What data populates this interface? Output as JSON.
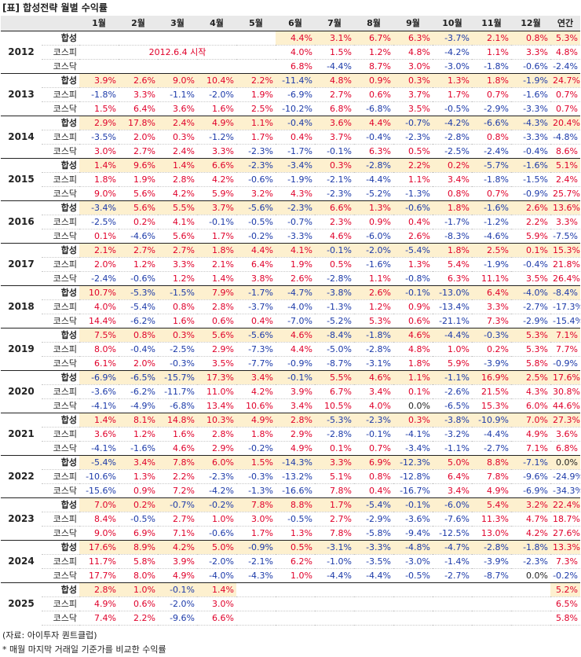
{
  "header": {
    "title": "[표] 합성전략 월별 수익률"
  },
  "table": {
    "columns": [
      "1월",
      "2월",
      "3월",
      "4월",
      "5월",
      "6월",
      "7월",
      "8월",
      "9월",
      "10월",
      "11월",
      "12월",
      "연간"
    ],
    "years": [
      {
        "year": "2012",
        "note": "2012.6.4 시작",
        "rows": [
          {
            "label": "합성",
            "cells": [
              null,
              null,
              null,
              null,
              null,
              "4.4%",
              "3.1%",
              "6.7%",
              "6.3%",
              "-3.7%",
              "2.1%",
              "0.8%",
              "5.3%"
            ]
          },
          {
            "label": "코스피",
            "cells": [
              null,
              null,
              null,
              null,
              null,
              "4.0%",
              "1.5%",
              "1.2%",
              "4.8%",
              "-4.2%",
              "1.1%",
              "3.3%",
              "4.8%"
            ]
          },
          {
            "label": "코스닥",
            "cells": [
              null,
              null,
              null,
              null,
              null,
              "6.8%",
              "-4.4%",
              "8.7%",
              "3.0%",
              "-3.0%",
              "-1.8%",
              "-0.6%",
              "-2.4%"
            ]
          }
        ]
      },
      {
        "year": "2013",
        "rows": [
          {
            "label": "합성",
            "cells": [
              "3.9%",
              "2.6%",
              "9.0%",
              "10.4%",
              "2.2%",
              "-11.4%",
              "4.8%",
              "0.9%",
              "0.3%",
              "1.3%",
              "1.8%",
              "-1.9%",
              "24.7%"
            ]
          },
          {
            "label": "코스피",
            "cells": [
              "-1.8%",
              "3.3%",
              "-1.1%",
              "-2.0%",
              "1.9%",
              "-6.9%",
              "2.7%",
              "0.6%",
              "3.7%",
              "1.7%",
              "0.7%",
              "-1.6%",
              "0.7%"
            ]
          },
          {
            "label": "코스닥",
            "cells": [
              "1.5%",
              "6.4%",
              "3.6%",
              "1.6%",
              "2.5%",
              "-10.2%",
              "6.8%",
              "-6.8%",
              "3.5%",
              "-0.5%",
              "-2.9%",
              "-3.3%",
              "0.7%"
            ]
          }
        ]
      },
      {
        "year": "2014",
        "rows": [
          {
            "label": "합성",
            "cells": [
              "2.9%",
              "17.8%",
              "2.4%",
              "4.9%",
              "1.1%",
              "-0.4%",
              "3.6%",
              "4.4%",
              "-0.7%",
              "-4.2%",
              "-6.6%",
              "-4.3%",
              "20.4%"
            ]
          },
          {
            "label": "코스피",
            "cells": [
              "-3.5%",
              "2.0%",
              "0.3%",
              "-1.2%",
              "1.7%",
              "0.4%",
              "3.7%",
              "-0.4%",
              "-2.3%",
              "-2.8%",
              "0.8%",
              "-3.3%",
              "-4.8%"
            ]
          },
          {
            "label": "코스닥",
            "cells": [
              "3.0%",
              "2.7%",
              "2.4%",
              "3.3%",
              "-2.3%",
              "-1.7%",
              "-0.1%",
              "6.3%",
              "0.5%",
              "-2.5%",
              "-2.4%",
              "-0.4%",
              "8.6%"
            ]
          }
        ]
      },
      {
        "year": "2015",
        "rows": [
          {
            "label": "합성",
            "cells": [
              "1.4%",
              "9.6%",
              "1.4%",
              "6.6%",
              "-2.3%",
              "-3.4%",
              "0.3%",
              "-2.8%",
              "2.2%",
              "0.2%",
              "-5.7%",
              "-1.6%",
              "5.1%"
            ]
          },
          {
            "label": "코스피",
            "cells": [
              "1.8%",
              "1.9%",
              "2.8%",
              "4.2%",
              "-0.6%",
              "-1.9%",
              "-2.1%",
              "-4.4%",
              "1.1%",
              "3.4%",
              "-1.8%",
              "-1.5%",
              "2.4%"
            ]
          },
          {
            "label": "코스닥",
            "cells": [
              "9.0%",
              "5.6%",
              "4.2%",
              "5.9%",
              "3.2%",
              "4.3%",
              "-2.3%",
              "-5.2%",
              "-1.3%",
              "0.8%",
              "0.7%",
              "-0.9%",
              "25.7%"
            ]
          }
        ]
      },
      {
        "year": "2016",
        "rows": [
          {
            "label": "합성",
            "cells": [
              "-3.4%",
              "5.6%",
              "5.5%",
              "3.7%",
              "-5.6%",
              "-2.3%",
              "6.6%",
              "1.3%",
              "-0.6%",
              "1.8%",
              "-1.6%",
              "2.6%",
              "13.6%"
            ]
          },
          {
            "label": "코스피",
            "cells": [
              "-2.5%",
              "0.2%",
              "4.1%",
              "-0.1%",
              "-0.5%",
              "-0.7%",
              "2.3%",
              "0.9%",
              "0.4%",
              "-1.7%",
              "-1.2%",
              "2.2%",
              "3.3%"
            ]
          },
          {
            "label": "코스닥",
            "cells": [
              "0.1%",
              "-4.6%",
              "5.6%",
              "1.7%",
              "-0.2%",
              "-3.3%",
              "4.6%",
              "-6.0%",
              "2.6%",
              "-8.3%",
              "-4.6%",
              "5.9%",
              "-7.5%"
            ]
          }
        ]
      },
      {
        "year": "2017",
        "rows": [
          {
            "label": "합성",
            "cells": [
              "2.1%",
              "2.7%",
              "2.7%",
              "1.8%",
              "4.4%",
              "4.1%",
              "-0.1%",
              "-2.0%",
              "-5.4%",
              "1.8%",
              "2.5%",
              "0.1%",
              "15.3%"
            ]
          },
          {
            "label": "코스피",
            "cells": [
              "2.0%",
              "1.2%",
              "3.3%",
              "2.1%",
              "6.4%",
              "1.9%",
              "0.5%",
              "-1.6%",
              "1.3%",
              "5.4%",
              "-1.9%",
              "-0.4%",
              "21.8%"
            ]
          },
          {
            "label": "코스닥",
            "cells": [
              "-2.4%",
              "-0.6%",
              "1.2%",
              "1.4%",
              "3.8%",
              "2.6%",
              "-2.8%",
              "1.1%",
              "-0.8%",
              "6.3%",
              "11.1%",
              "3.5%",
              "26.4%"
            ]
          }
        ]
      },
      {
        "year": "2018",
        "rows": [
          {
            "label": "합성",
            "cells": [
              "10.7%",
              "-5.3%",
              "-1.5%",
              "7.9%",
              "-1.7%",
              "-4.7%",
              "-3.8%",
              "2.6%",
              "-0.1%",
              "-13.0%",
              "6.4%",
              "-4.0%",
              "-8.4%"
            ]
          },
          {
            "label": "코스피",
            "cells": [
              "4.0%",
              "-5.4%",
              "0.8%",
              "2.8%",
              "-3.7%",
              "-4.0%",
              "-1.3%",
              "1.2%",
              "0.9%",
              "-13.4%",
              "3.3%",
              "-2.7%",
              "-17.3%"
            ]
          },
          {
            "label": "코스닥",
            "cells": [
              "14.4%",
              "-6.2%",
              "1.6%",
              "0.6%",
              "0.4%",
              "-7.0%",
              "-5.2%",
              "5.3%",
              "0.6%",
              "-21.1%",
              "7.3%",
              "-2.9%",
              "-15.4%"
            ]
          }
        ]
      },
      {
        "year": "2019",
        "rows": [
          {
            "label": "합성",
            "cells": [
              "7.5%",
              "0.8%",
              "0.3%",
              "5.6%",
              "-5.6%",
              "4.6%",
              "-8.4%",
              "-1.8%",
              "4.6%",
              "-4.4%",
              "-0.3%",
              "5.3%",
              "7.1%"
            ]
          },
          {
            "label": "코스피",
            "cells": [
              "8.0%",
              "-0.4%",
              "-2.5%",
              "2.9%",
              "-7.3%",
              "4.4%",
              "-5.0%",
              "-2.8%",
              "4.8%",
              "1.0%",
              "0.2%",
              "5.3%",
              "7.7%"
            ]
          },
          {
            "label": "코스닥",
            "cells": [
              "6.1%",
              "2.0%",
              "-0.3%",
              "3.5%",
              "-7.7%",
              "-0.9%",
              "-8.7%",
              "-3.1%",
              "1.8%",
              "5.9%",
              "-3.9%",
              "5.8%",
              "-0.9%"
            ]
          }
        ]
      },
      {
        "year": "2020",
        "rows": [
          {
            "label": "합성",
            "cells": [
              "-6.9%",
              "-6.5%",
              "-15.7%",
              "17.3%",
              "3.4%",
              "-0.1%",
              "5.5%",
              "4.6%",
              "1.1%",
              "-1.1%",
              "16.9%",
              "2.5%",
              "17.6%"
            ]
          },
          {
            "label": "코스피",
            "cells": [
              "-3.6%",
              "-6.2%",
              "-11.7%",
              "11.0%",
              "4.2%",
              "3.9%",
              "6.7%",
              "3.4%",
              "0.1%",
              "-2.6%",
              "21.5%",
              "4.3%",
              "30.8%"
            ]
          },
          {
            "label": "코스닥",
            "cells": [
              "-4.1%",
              "-4.9%",
              "-6.8%",
              "13.4%",
              "10.6%",
              "3.4%",
              "10.5%",
              "4.0%",
              "0.0%",
              "-6.5%",
              "15.3%",
              "6.0%",
              "44.6%"
            ]
          }
        ]
      },
      {
        "year": "2021",
        "rows": [
          {
            "label": "합성",
            "cells": [
              "1.4%",
              "8.1%",
              "14.8%",
              "10.3%",
              "4.9%",
              "2.8%",
              "-5.3%",
              "-2.3%",
              "0.3%",
              "-3.8%",
              "-10.9%",
              "7.0%",
              "27.3%"
            ]
          },
          {
            "label": "코스피",
            "cells": [
              "3.6%",
              "1.2%",
              "1.6%",
              "2.8%",
              "1.8%",
              "2.9%",
              "-2.8%",
              "-0.1%",
              "-4.1%",
              "-3.2%",
              "-4.4%",
              "4.9%",
              "3.6%"
            ]
          },
          {
            "label": "코스닥",
            "cells": [
              "-4.1%",
              "-1.6%",
              "4.6%",
              "2.9%",
              "-0.2%",
              "4.9%",
              "0.1%",
              "0.7%",
              "-3.4%",
              "-1.1%",
              "-2.7%",
              "7.1%",
              "6.8%"
            ]
          }
        ]
      },
      {
        "year": "2022",
        "rows": [
          {
            "label": "합성",
            "cells": [
              "-5.4%",
              "3.4%",
              "7.8%",
              "6.0%",
              "1.5%",
              "-14.3%",
              "3.3%",
              "6.9%",
              "-12.3%",
              "5.0%",
              "8.8%",
              "-7.1%",
              "0.0%"
            ]
          },
          {
            "label": "코스피",
            "cells": [
              "-10.6%",
              "1.3%",
              "2.2%",
              "-2.3%",
              "-0.3%",
              "-13.2%",
              "5.1%",
              "0.8%",
              "-12.8%",
              "6.4%",
              "7.8%",
              "-9.6%",
              "-24.9%"
            ]
          },
          {
            "label": "코스닥",
            "cells": [
              "-15.6%",
              "0.9%",
              "7.2%",
              "-4.2%",
              "-1.3%",
              "-16.6%",
              "7.8%",
              "0.4%",
              "-16.7%",
              "3.4%",
              "4.9%",
              "-6.9%",
              "-34.3%"
            ]
          }
        ]
      },
      {
        "year": "2023",
        "rows": [
          {
            "label": "합성",
            "cells": [
              "7.0%",
              "0.2%",
              "-0.7%",
              "-0.2%",
              "7.8%",
              "8.8%",
              "1.7%",
              "-5.4%",
              "-0.1%",
              "-6.0%",
              "5.4%",
              "3.2%",
              "22.4%"
            ]
          },
          {
            "label": "코스피",
            "cells": [
              "8.4%",
              "-0.5%",
              "2.7%",
              "1.0%",
              "3.0%",
              "-0.5%",
              "2.7%",
              "-2.9%",
              "-3.6%",
              "-7.6%",
              "11.3%",
              "4.7%",
              "18.7%"
            ]
          },
          {
            "label": "코스닥",
            "cells": [
              "9.0%",
              "6.9%",
              "7.1%",
              "-0.6%",
              "1.7%",
              "1.3%",
              "7.8%",
              "-5.8%",
              "-9.4%",
              "-12.5%",
              "13.0%",
              "4.2%",
              "27.6%"
            ]
          }
        ]
      },
      {
        "year": "2024",
        "rows": [
          {
            "label": "합성",
            "cells": [
              "17.6%",
              "8.9%",
              "4.2%",
              "5.0%",
              "-0.9%",
              "0.5%",
              "-3.1%",
              "-3.3%",
              "-4.8%",
              "-4.7%",
              "-2.8%",
              "-1.8%",
              "13.3%"
            ]
          },
          {
            "label": "코스피",
            "cells": [
              "11.7%",
              "5.8%",
              "3.9%",
              "-2.0%",
              "-2.1%",
              "6.2%",
              "-1.0%",
              "-3.5%",
              "-3.0%",
              "-1.4%",
              "-3.9%",
              "-2.3%",
              "7.3%"
            ]
          },
          {
            "label": "코스닥",
            "cells": [
              "17.7%",
              "8.0%",
              "4.9%",
              "-4.0%",
              "-4.3%",
              "1.0%",
              "-4.4%",
              "-4.4%",
              "-0.5%",
              "-2.7%",
              "-8.7%",
              "0.0%",
              "-0.2%"
            ]
          }
        ]
      },
      {
        "year": "2025",
        "rows": [
          {
            "label": "합성",
            "cells": [
              "2.8%",
              "1.0%",
              "-0.1%",
              "1.4%",
              null,
              null,
              null,
              null,
              null,
              null,
              null,
              null,
              "5.2%"
            ]
          },
          {
            "label": "코스피",
            "cells": [
              "4.9%",
              "0.6%",
              "-2.0%",
              "3.0%",
              null,
              null,
              null,
              null,
              null,
              null,
              null,
              null,
              "6.5%"
            ]
          },
          {
            "label": "코스닥",
            "cells": [
              "7.4%",
              "2.2%",
              "-9.6%",
              "6.6%",
              null,
              null,
              null,
              null,
              null,
              null,
              null,
              null,
              "5.8%"
            ]
          }
        ]
      }
    ]
  },
  "footer": {
    "source": "(자료: 아이투자 퀀트클럽)",
    "note": "* 매월 마지막 거래일 기준가를 비교한 수익률"
  }
}
